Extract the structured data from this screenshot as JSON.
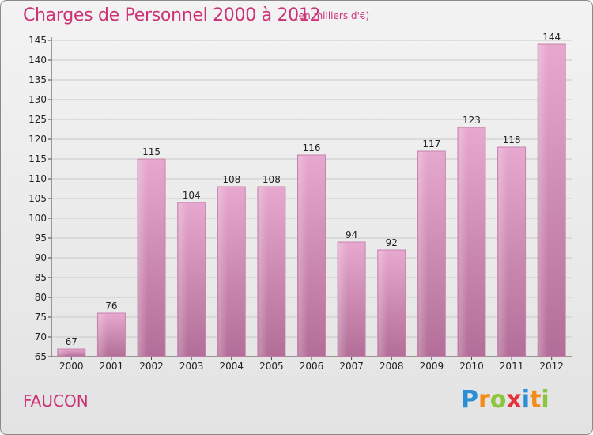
{
  "chart_data": {
    "type": "bar",
    "title": "Charges de Personnel 2000 à 2012",
    "subtitle": "(en milliers d'€)",
    "xlabel": "",
    "ylabel": "",
    "categories": [
      "2000",
      "2001",
      "2002",
      "2003",
      "2004",
      "2005",
      "2006",
      "2007",
      "2008",
      "2009",
      "2010",
      "2011",
      "2012"
    ],
    "values": [
      67,
      76,
      115,
      104,
      108,
      108,
      116,
      94,
      92,
      117,
      123,
      118,
      144
    ],
    "ylim": [
      65,
      145
    ],
    "yticks": [
      65,
      70,
      75,
      80,
      85,
      90,
      95,
      100,
      105,
      110,
      115,
      120,
      125,
      130,
      135,
      140,
      145
    ],
    "grid": true,
    "bar_color": "#d987b6"
  },
  "commune": "FAUCON",
  "logo": {
    "text": "Proxiti",
    "letters": [
      {
        "char": "P",
        "color": "#2b8fd6"
      },
      {
        "char": "r",
        "color": "#f28c1c"
      },
      {
        "char": "o",
        "color": "#8cc63f"
      },
      {
        "char": "x",
        "color": "#e8303a"
      },
      {
        "char": "i",
        "color": "#2b8fd6"
      },
      {
        "char": "t",
        "color": "#f28c1c"
      },
      {
        "char": "i",
        "color": "#8cc63f"
      }
    ]
  }
}
